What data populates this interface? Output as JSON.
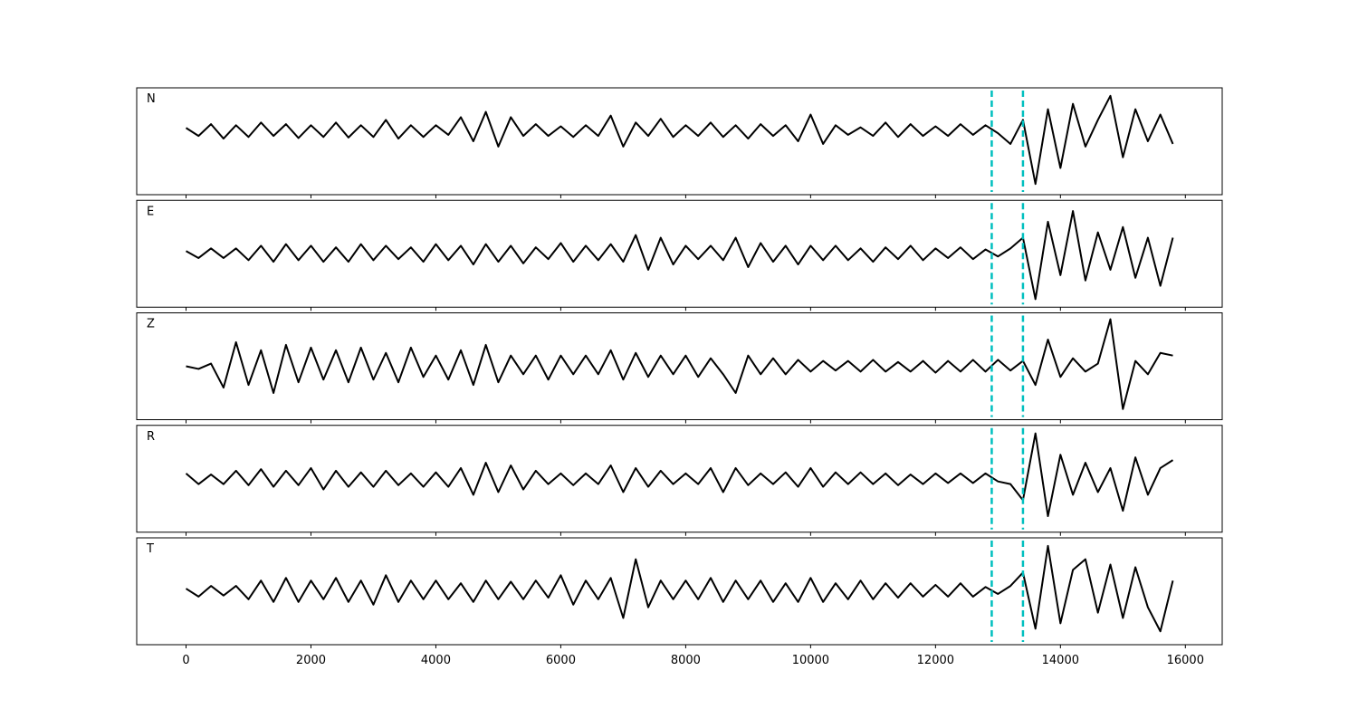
{
  "chart_data": {
    "type": "line",
    "x": [
      0,
      200,
      400,
      600,
      800,
      1000,
      1200,
      1400,
      1600,
      1800,
      2000,
      2200,
      2400,
      2600,
      2800,
      3000,
      3200,
      3400,
      3600,
      3800,
      4000,
      4200,
      4400,
      4600,
      4800,
      5000,
      5200,
      5400,
      5600,
      5800,
      6000,
      6200,
      6400,
      6600,
      6800,
      7000,
      7200,
      7400,
      7600,
      7800,
      8000,
      8200,
      8400,
      8600,
      8800,
      9000,
      9200,
      9400,
      9600,
      9800,
      10000,
      10200,
      10400,
      10600,
      10800,
      11000,
      11200,
      11400,
      11600,
      11800,
      12000,
      12200,
      12400,
      12600,
      12800,
      13000,
      13200,
      13400,
      13600,
      13800,
      14000,
      14200,
      14400,
      14600,
      14800,
      15000,
      15200,
      15400,
      15600,
      15800
    ],
    "xlim": [
      -790,
      16590
    ],
    "xticks": [
      0,
      2000,
      4000,
      6000,
      8000,
      10000,
      12000,
      14000,
      16000
    ],
    "vlines": [
      12900,
      13400
    ],
    "vline_color": "#00bfbf",
    "panels": [
      {
        "title": "N",
        "color": "#000000",
        "ylim": [
          -1.2,
          0.8
        ],
        "values": [
          0.05,
          -0.1,
          0.12,
          -0.15,
          0.1,
          -0.12,
          0.15,
          -0.1,
          0.12,
          -0.14,
          0.1,
          -0.12,
          0.15,
          -0.13,
          0.1,
          -0.12,
          0.2,
          -0.15,
          0.1,
          -0.12,
          0.1,
          -0.08,
          0.25,
          -0.2,
          0.35,
          -0.3,
          0.25,
          -0.1,
          0.12,
          -0.1,
          0.08,
          -0.12,
          0.1,
          -0.1,
          0.28,
          -0.3,
          0.15,
          -0.1,
          0.22,
          -0.12,
          0.1,
          -0.1,
          0.15,
          -0.12,
          0.1,
          -0.15,
          0.12,
          -0.1,
          0.1,
          -0.2,
          0.3,
          -0.25,
          0.1,
          -0.08,
          0.06,
          -0.1,
          0.15,
          -0.12,
          0.12,
          -0.1,
          0.08,
          -0.1,
          0.12,
          -0.08,
          0.1,
          -0.05,
          -0.25,
          0.2,
          -1.0,
          0.4,
          -0.7,
          0.5,
          -0.3,
          0.2,
          0.65,
          -0.5,
          0.4,
          -0.2,
          0.3,
          -0.25
        ]
      },
      {
        "title": "E",
        "color": "#000000",
        "ylim": [
          -1,
          1
        ],
        "values": [
          0.05,
          -0.08,
          0.1,
          -0.08,
          0.1,
          -0.12,
          0.15,
          -0.15,
          0.18,
          -0.12,
          0.15,
          -0.15,
          0.12,
          -0.15,
          0.18,
          -0.12,
          0.15,
          -0.1,
          0.12,
          -0.15,
          0.18,
          -0.12,
          0.15,
          -0.2,
          0.18,
          -0.15,
          0.15,
          -0.18,
          0.12,
          -0.1,
          0.2,
          -0.15,
          0.15,
          -0.12,
          0.18,
          -0.15,
          0.35,
          -0.3,
          0.3,
          -0.2,
          0.15,
          -0.1,
          0.15,
          -0.12,
          0.3,
          -0.25,
          0.2,
          -0.15,
          0.15,
          -0.2,
          0.15,
          -0.12,
          0.15,
          -0.12,
          0.1,
          -0.15,
          0.12,
          -0.1,
          0.15,
          -0.12,
          0.1,
          -0.08,
          0.12,
          -0.1,
          0.08,
          -0.05,
          0.1,
          0.3,
          -0.85,
          0.6,
          -0.4,
          0.8,
          -0.5,
          0.4,
          -0.3,
          0.5,
          -0.45,
          0.3,
          -0.6,
          0.3
        ]
      },
      {
        "title": "Z",
        "color": "#000000",
        "ylim": [
          -1,
          1
        ],
        "values": [
          0.0,
          -0.05,
          0.05,
          -0.4,
          0.45,
          -0.35,
          0.3,
          -0.5,
          0.4,
          -0.3,
          0.35,
          -0.25,
          0.3,
          -0.3,
          0.35,
          -0.25,
          0.25,
          -0.3,
          0.35,
          -0.2,
          0.2,
          -0.25,
          0.3,
          -0.35,
          0.4,
          -0.3,
          0.2,
          -0.15,
          0.2,
          -0.25,
          0.2,
          -0.15,
          0.2,
          -0.15,
          0.3,
          -0.25,
          0.25,
          -0.2,
          0.2,
          -0.15,
          0.2,
          -0.2,
          0.15,
          -0.15,
          -0.5,
          0.2,
          -0.15,
          0.15,
          -0.15,
          0.12,
          -0.1,
          0.1,
          -0.08,
          0.1,
          -0.1,
          0.12,
          -0.1,
          0.08,
          -0.1,
          0.1,
          -0.12,
          0.1,
          -0.1,
          0.12,
          -0.1,
          0.12,
          -0.08,
          0.1,
          -0.35,
          0.5,
          -0.2,
          0.15,
          -0.1,
          0.05,
          0.88,
          -0.8,
          0.1,
          -0.15,
          0.25,
          0.2
        ]
      },
      {
        "title": "R",
        "color": "#000000",
        "ylim": [
          -1,
          1
        ],
        "values": [
          0.1,
          -0.1,
          0.08,
          -0.1,
          0.15,
          -0.12,
          0.18,
          -0.15,
          0.15,
          -0.12,
          0.2,
          -0.2,
          0.15,
          -0.15,
          0.12,
          -0.15,
          0.15,
          -0.12,
          0.1,
          -0.15,
          0.12,
          -0.15,
          0.2,
          -0.3,
          0.3,
          -0.25,
          0.25,
          -0.2,
          0.15,
          -0.1,
          0.1,
          -0.12,
          0.1,
          -0.1,
          0.25,
          -0.25,
          0.2,
          -0.15,
          0.15,
          -0.1,
          0.1,
          -0.1,
          0.2,
          -0.25,
          0.2,
          -0.12,
          0.1,
          -0.1,
          0.12,
          -0.15,
          0.2,
          -0.15,
          0.12,
          -0.1,
          0.12,
          -0.1,
          0.1,
          -0.12,
          0.08,
          -0.1,
          0.1,
          -0.08,
          0.1,
          -0.08,
          0.1,
          -0.05,
          -0.1,
          -0.4,
          0.85,
          -0.7,
          0.45,
          -0.3,
          0.3,
          -0.25,
          0.2,
          -0.6,
          0.4,
          -0.3,
          0.2,
          0.35
        ]
      },
      {
        "title": "T",
        "color": "#000000",
        "ylim": [
          -1,
          1
        ],
        "values": [
          0.05,
          -0.1,
          0.1,
          -0.08,
          0.1,
          -0.15,
          0.2,
          -0.2,
          0.25,
          -0.2,
          0.2,
          -0.15,
          0.25,
          -0.2,
          0.2,
          -0.25,
          0.3,
          -0.2,
          0.2,
          -0.15,
          0.2,
          -0.15,
          0.15,
          -0.2,
          0.2,
          -0.15,
          0.18,
          -0.15,
          0.2,
          -0.12,
          0.3,
          -0.25,
          0.2,
          -0.15,
          0.25,
          -0.5,
          0.6,
          -0.3,
          0.2,
          -0.15,
          0.2,
          -0.15,
          0.25,
          -0.2,
          0.2,
          -0.15,
          0.2,
          -0.2,
          0.15,
          -0.2,
          0.25,
          -0.2,
          0.15,
          -0.15,
          0.2,
          -0.15,
          0.15,
          -0.12,
          0.15,
          -0.1,
          0.12,
          -0.1,
          0.15,
          -0.1,
          0.08,
          -0.05,
          0.1,
          0.35,
          -0.7,
          0.85,
          -0.6,
          0.4,
          0.6,
          -0.4,
          0.5,
          -0.5,
          0.45,
          -0.3,
          -0.75,
          0.2
        ]
      }
    ]
  }
}
